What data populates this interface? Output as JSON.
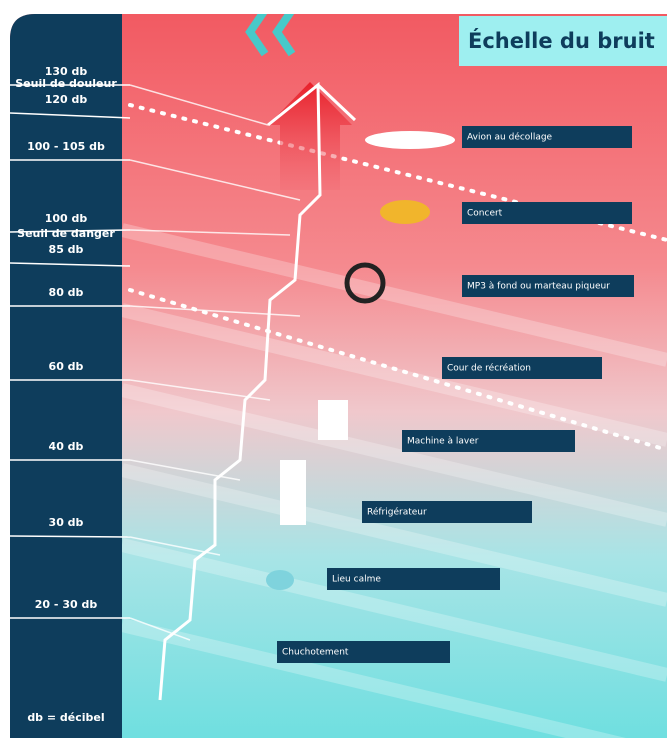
{
  "title": "Échelle du bruit",
  "levels": [
    [
      "130 db"
    ],
    [
      "Seuil de douleur",
      "120 db"
    ],
    [
      "100 - 105 db"
    ],
    [
      "100 db"
    ],
    [
      "Seuil de danger",
      "85 db"
    ],
    [
      "80 db"
    ],
    [
      "60 db"
    ],
    [
      "40 db"
    ],
    [
      "30 db"
    ],
    [
      "20 - 30 db"
    ]
  ],
  "footnote": "db = décibel",
  "sources": [
    "Avion au décollage",
    "Concert",
    "MP3 à fond ou marteau piqueur",
    "Cour de récréation",
    "Machine à laver",
    "Réfrigérateur",
    "Lieu calme",
    "Chuchotement"
  ]
}
